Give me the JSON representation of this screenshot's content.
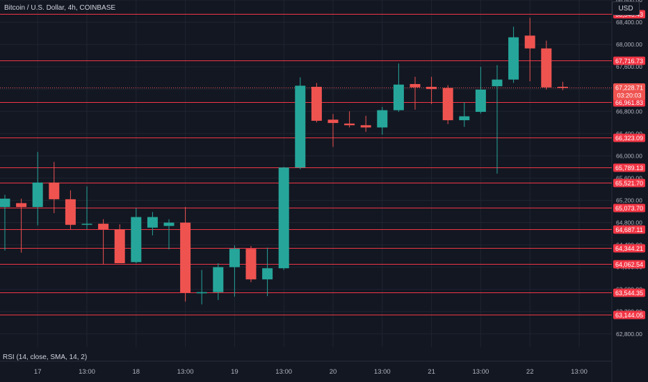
{
  "header": {
    "symbol_title": "Bitcoin / U.S. Dollar, 4h, COINBASE",
    "currency_button": "USD"
  },
  "indicator": {
    "rsi_label": "RSI (14, close, SMA, 14, 2)"
  },
  "countdown": "03:20:03",
  "colors": {
    "background": "#131722",
    "bull": "#26a69a",
    "bear": "#ef5350",
    "level_line": "#f23645",
    "grid": "#1f2430"
  },
  "chart_data": {
    "type": "candlestick",
    "symbol": "BTCUSD",
    "interval": "4h",
    "ylim": [
      62560,
      68800
    ],
    "y_ticks": [
      "62,800.00",
      "63,200.00",
      "63,600.00",
      "64,000.00",
      "64,400.00",
      "64,800.00",
      "65,200.00",
      "65,600.00",
      "66,000.00",
      "66,400.00",
      "66,800.00",
      "67,200.00",
      "67,600.00",
      "68,000.00",
      "68,400.00",
      "68,800.00"
    ],
    "x_ticks": [
      {
        "label": "17",
        "bar": 2
      },
      {
        "label": "13:00",
        "bar": 5
      },
      {
        "label": "18",
        "bar": 8
      },
      {
        "label": "13:00",
        "bar": 11
      },
      {
        "label": "19",
        "bar": 14
      },
      {
        "label": "13:00",
        "bar": 17
      },
      {
        "label": "20",
        "bar": 20
      },
      {
        "label": "13:00",
        "bar": 23
      },
      {
        "label": "21",
        "bar": 26
      },
      {
        "label": "13:00",
        "bar": 29
      },
      {
        "label": "22",
        "bar": 32
      },
      {
        "label": "13:00",
        "bar": 35
      }
    ],
    "candles": [
      {
        "o": 65080,
        "h": 65300,
        "l": 64300,
        "c": 65230
      },
      {
        "o": 65150,
        "h": 65230,
        "l": 64260,
        "c": 65080
      },
      {
        "o": 65080,
        "h": 66070,
        "l": 64750,
        "c": 65520
      },
      {
        "o": 65520,
        "h": 65890,
        "l": 64970,
        "c": 65220
      },
      {
        "o": 65220,
        "h": 65380,
        "l": 64680,
        "c": 64760
      },
      {
        "o": 64780,
        "h": 65450,
        "l": 64680,
        "c": 64780
      },
      {
        "o": 64780,
        "h": 64860,
        "l": 64050,
        "c": 64680
      },
      {
        "o": 64680,
        "h": 64770,
        "l": 64110,
        "c": 64070
      },
      {
        "o": 64090,
        "h": 65060,
        "l": 64070,
        "c": 64900
      },
      {
        "o": 64710,
        "h": 64990,
        "l": 64570,
        "c": 64900
      },
      {
        "o": 64740,
        "h": 64860,
        "l": 64320,
        "c": 64800
      },
      {
        "o": 64800,
        "h": 65080,
        "l": 63380,
        "c": 63540
      },
      {
        "o": 63530,
        "h": 63950,
        "l": 63330,
        "c": 63550
      },
      {
        "o": 63550,
        "h": 64070,
        "l": 63410,
        "c": 64000
      },
      {
        "o": 64000,
        "h": 64390,
        "l": 63470,
        "c": 64330
      },
      {
        "o": 64330,
        "h": 64380,
        "l": 63730,
        "c": 63780
      },
      {
        "o": 63780,
        "h": 64350,
        "l": 63480,
        "c": 63980
      },
      {
        "o": 63980,
        "h": 65800,
        "l": 63950,
        "c": 65790
      },
      {
        "o": 65790,
        "h": 67410,
        "l": 65760,
        "c": 67260
      },
      {
        "o": 67240,
        "h": 67310,
        "l": 66600,
        "c": 66630
      },
      {
        "o": 66650,
        "h": 66750,
        "l": 66160,
        "c": 66590
      },
      {
        "o": 66580,
        "h": 66800,
        "l": 66510,
        "c": 66550
      },
      {
        "o": 66550,
        "h": 66720,
        "l": 66430,
        "c": 66510
      },
      {
        "o": 66510,
        "h": 66880,
        "l": 66380,
        "c": 66820
      },
      {
        "o": 66820,
        "h": 67660,
        "l": 66790,
        "c": 67280
      },
      {
        "o": 67290,
        "h": 67420,
        "l": 66830,
        "c": 67230
      },
      {
        "o": 67240,
        "h": 67420,
        "l": 66930,
        "c": 67200
      },
      {
        "o": 67220,
        "h": 67270,
        "l": 66570,
        "c": 66640
      },
      {
        "o": 66640,
        "h": 66960,
        "l": 66520,
        "c": 66710
      },
      {
        "o": 66790,
        "h": 67600,
        "l": 66760,
        "c": 67190
      },
      {
        "o": 67250,
        "h": 67630,
        "l": 65680,
        "c": 67370
      },
      {
        "o": 67370,
        "h": 68320,
        "l": 67310,
        "c": 68130
      },
      {
        "o": 68160,
        "h": 68480,
        "l": 67340,
        "c": 67930
      },
      {
        "o": 67930,
        "h": 68070,
        "l": 67190,
        "c": 67230
      },
      {
        "o": 67240,
        "h": 67330,
        "l": 67180,
        "c": 67220
      }
    ],
    "levels": [
      68546.43,
      67716.73,
      66961.83,
      66323.09,
      65789.13,
      65521.7,
      65073.7,
      64687.11,
      64344.21,
      64062.54,
      63544.35,
      63144.05
    ],
    "level_labels": [
      "68,546.43",
      "67,716.73",
      "66,961.83",
      "66,323.09",
      "65,789.13",
      "65,521.70",
      "65,073.70",
      "64,687.11",
      "64,344.21",
      "64,062.54",
      "63,544.35",
      "63,144.05"
    ],
    "current_price": 67228.71,
    "current_price_label": "67,228.71"
  }
}
